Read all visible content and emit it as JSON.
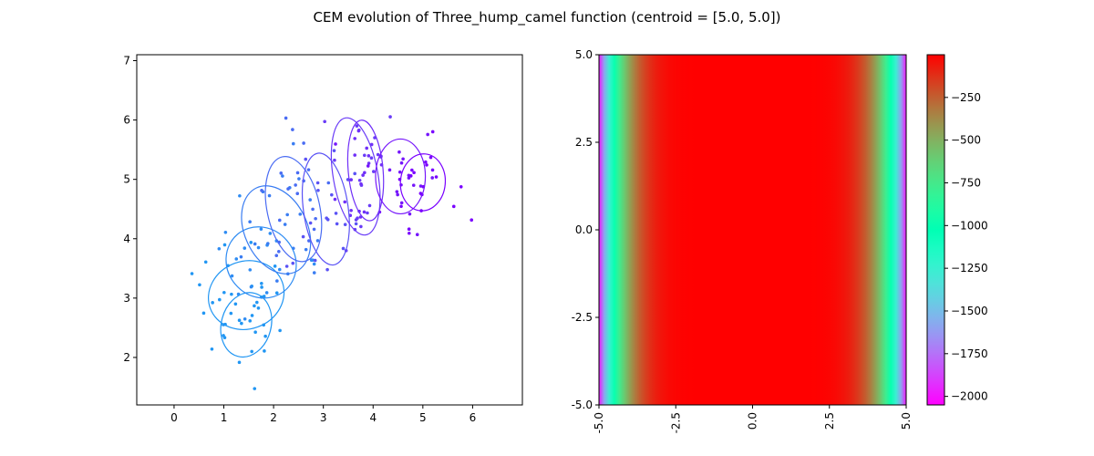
{
  "title": "CEM evolution of Three_hump_camel function (centroid = [5.0, 5.0])",
  "colors": {
    "scatter_low": "#2196f3",
    "scatter_high": "#7a00ff",
    "axis": "#000000"
  },
  "chart_data": [
    {
      "type": "scatter",
      "xlim": [
        -0.75,
        7.0
      ],
      "ylim": [
        1.2,
        7.1
      ],
      "xticks": [
        0,
        1,
        2,
        3,
        4,
        5,
        6
      ],
      "yticks": [
        2,
        3,
        4,
        5,
        6,
        7
      ],
      "xtick_labels": [
        "0",
        "1",
        "2",
        "3",
        "4",
        "5",
        "6"
      ],
      "ytick_labels": [
        "2",
        "3",
        "4",
        "5",
        "6",
        "7"
      ],
      "grid": false,
      "ellipses": [
        {
          "cx": 1.45,
          "cy": 2.55,
          "rx": 0.5,
          "ry": 0.55,
          "angle": 15,
          "color": "#2196f3"
        },
        {
          "cx": 1.45,
          "cy": 3.05,
          "rx": 0.77,
          "ry": 0.57,
          "angle": -20,
          "color": "#2196f3"
        },
        {
          "cx": 1.75,
          "cy": 3.6,
          "rx": 0.68,
          "ry": 0.62,
          "angle": -40,
          "color": "#2f8cf3"
        },
        {
          "cx": 2.05,
          "cy": 4.15,
          "rx": 0.63,
          "ry": 0.78,
          "angle": -25,
          "color": "#3a7df2"
        },
        {
          "cx": 2.4,
          "cy": 4.5,
          "rx": 0.53,
          "ry": 0.9,
          "angle": -12,
          "color": "#4a6cf3"
        },
        {
          "cx": 3.05,
          "cy": 4.5,
          "rx": 0.45,
          "ry": 0.95,
          "angle": -8,
          "color": "#5a52f5"
        },
        {
          "cx": 3.65,
          "cy": 5.05,
          "rx": 0.45,
          "ry": 1.0,
          "angle": -10,
          "color": "#6a3cf7"
        },
        {
          "cx": 3.85,
          "cy": 5.15,
          "rx": 0.35,
          "ry": 0.85,
          "angle": -5,
          "color": "#7030f8"
        },
        {
          "cx": 4.55,
          "cy": 5.05,
          "rx": 0.5,
          "ry": 0.63,
          "angle": 0,
          "color": "#7515fb"
        },
        {
          "cx": 5.0,
          "cy": 4.95,
          "rx": 0.45,
          "ry": 0.48,
          "angle": 5,
          "color": "#7a00ff"
        }
      ]
    },
    {
      "type": "heatmap",
      "xlim": [
        -5.0,
        5.0
      ],
      "ylim": [
        -5.0,
        5.0
      ],
      "xtick_labels": [
        "-5.0",
        "-2.5",
        "0.0",
        "2.5",
        "5.0"
      ],
      "ytick_labels": [
        "5.0",
        "2.5",
        "0.0",
        "-2.5",
        "-5.0"
      ],
      "colorbar": {
        "min": -2050,
        "max": 0,
        "ticks": [
          -250,
          -500,
          -750,
          -1000,
          -1250,
          -1500,
          -1750,
          -2000
        ],
        "tick_labels": [
          "−250",
          "−500",
          "−750",
          "−1000",
          "−1250",
          "−1500",
          "−1750",
          "−2000"
        ],
        "colormap": "rainbow"
      }
    }
  ]
}
